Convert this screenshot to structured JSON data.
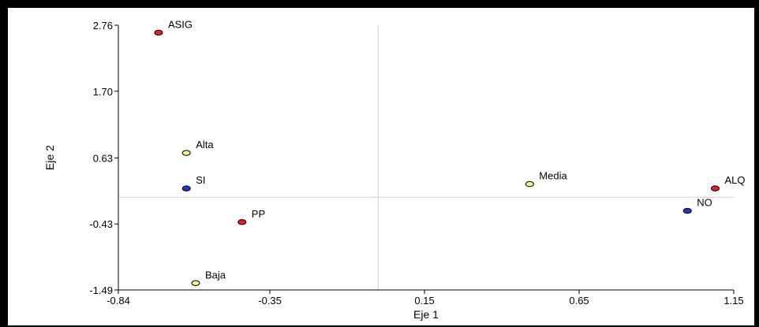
{
  "chart_data": {
    "type": "scatter",
    "xlabel": "Eje 1",
    "ylabel": "Eje 2",
    "xlim": [
      -0.84,
      1.15
    ],
    "ylim": [
      -1.49,
      2.76
    ],
    "xticks": [
      -0.84,
      -0.35,
      0.15,
      0.65,
      1.15
    ],
    "xtick_labels": [
      "-0.84",
      "-0.35",
      "0.15",
      "0.65",
      "1.15"
    ],
    "yticks": [
      -1.49,
      -0.43,
      0.63,
      1.7,
      2.76
    ],
    "ytick_labels": [
      "-1.49",
      "-0.43",
      "0.63",
      "1.70",
      "2.76"
    ],
    "reference_lines": {
      "x": 0.0,
      "y": 0.0
    },
    "grid": false,
    "legend": "none",
    "points": [
      {
        "label": "ASIG",
        "x": -0.71,
        "y": 2.64,
        "color": "#e8202a"
      },
      {
        "label": "Alta",
        "x": -0.62,
        "y": 0.71,
        "color": "#f5f08c"
      },
      {
        "label": "SI",
        "x": -0.62,
        "y": 0.14,
        "color": "#2437c8"
      },
      {
        "label": "PP",
        "x": -0.44,
        "y": -0.4,
        "color": "#e8202a"
      },
      {
        "label": "Baja",
        "x": -0.59,
        "y": -1.38,
        "color": "#f5f08c"
      },
      {
        "label": "Media",
        "x": 0.49,
        "y": 0.21,
        "color": "#f5f08c"
      },
      {
        "label": "ALQ",
        "x": 1.09,
        "y": 0.14,
        "color": "#e8202a"
      },
      {
        "label": "NO",
        "x": 1.0,
        "y": -0.22,
        "color": "#2437c8"
      }
    ]
  }
}
